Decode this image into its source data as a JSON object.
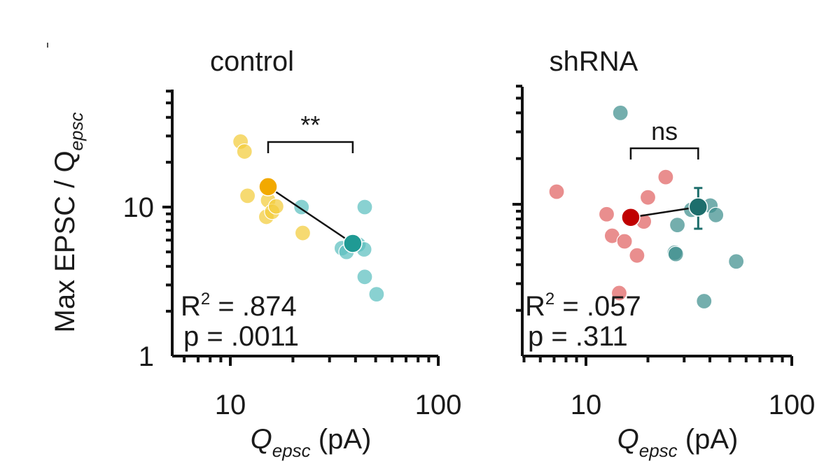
{
  "chart_data": [
    {
      "type": "scatter",
      "title": "control",
      "xscale": "log",
      "yscale": "log",
      "xlim": [
        5,
        100
      ],
      "ylim": [
        1,
        60
      ],
      "xticks": [
        10,
        100
      ],
      "xtick_labels": [
        "10",
        "100"
      ],
      "yticks": [
        1,
        10
      ],
      "ytick_labels": [
        "1",
        "10"
      ],
      "xlabel": {
        "main": "Q",
        "sub": "epsc",
        "rest": " (pA)"
      },
      "ylabel": {
        "main": "Max EPSC / Q",
        "sub": "epsc"
      },
      "series": [
        {
          "name": "control Q1",
          "color": "#f2cc3a",
          "role": "cells",
          "points": [
            [
              11.2,
              27.5
            ],
            [
              11.7,
              23.6
            ],
            [
              12.1,
              11.9
            ],
            [
              14.9,
              8.6
            ],
            [
              15.2,
              11.1
            ],
            [
              15.9,
              9.3
            ],
            [
              16.6,
              10.1
            ],
            [
              22.3,
              6.7
            ]
          ]
        },
        {
          "name": "control Q2",
          "color": "#5bbfbf",
          "role": "cells",
          "points": [
            [
              22.0,
              10.0
            ],
            [
              34.4,
              5.3
            ],
            [
              36.2,
              5.0
            ],
            [
              41.3,
              5.6
            ],
            [
              44.3,
              10.0
            ],
            [
              44.0,
              5.2
            ],
            [
              44.3,
              3.4
            ],
            [
              50.5,
              2.6
            ]
          ]
        },
        {
          "name": "control Q1 mean",
          "color": "#f2a900",
          "role": "mean",
          "points": [
            [
              15.2,
              13.7
            ]
          ],
          "yerr": [
            [
              12.2,
              15.3
            ]
          ]
        },
        {
          "name": "control Q2 mean",
          "color": "#1f9a94",
          "role": "mean",
          "points": [
            [
              38.8,
              5.7
            ]
          ],
          "yerr": [
            [
              5.2,
              6.3
            ]
          ]
        }
      ],
      "fit_line": [
        [
          15.2,
          13.7
        ],
        [
          38.8,
          5.7
        ]
      ],
      "significance": {
        "label": "**",
        "x1": 15.2,
        "x2": 38.8
      },
      "annotations": [
        {
          "label": "R",
          "sup": "2",
          "rest": " = .874"
        },
        {
          "label": "p = .0011"
        }
      ]
    },
    {
      "type": "scatter",
      "title": "shRNA",
      "xscale": "log",
      "yscale": "log",
      "xlim": [
        5,
        100
      ],
      "ylim": [
        1,
        60
      ],
      "xticks": [
        10,
        100
      ],
      "xtick_labels": [
        "10",
        "100"
      ],
      "yticks": [
        1,
        10
      ],
      "ytick_labels": [
        "",
        ""
      ],
      "xlabel": {
        "main": "Q",
        "sub": "epsc",
        "rest": " (pA)"
      },
      "ylabel": null,
      "series": [
        {
          "name": "shRNA Q1",
          "color": "#e06262",
          "role": "cells",
          "points": [
            [
              7.2,
              12.1
            ],
            [
              12.6,
              8.6
            ],
            [
              13.4,
              6.2
            ],
            [
              14.5,
              2.6
            ],
            [
              15.4,
              5.7
            ],
            [
              17.7,
              4.6
            ],
            [
              19.1,
              7.7
            ],
            [
              20.0,
              11.1
            ],
            [
              24.4,
              15.1
            ]
          ]
        },
        {
          "name": "shRNA Q2",
          "color": "#3e8f8d",
          "role": "cells",
          "points": [
            [
              14.7,
              40.0
            ],
            [
              27.0,
              4.8
            ],
            [
              27.3,
              4.7
            ],
            [
              27.8,
              7.3
            ],
            [
              32.5,
              9.2
            ],
            [
              37.5,
              2.3
            ],
            [
              40.2,
              9.8
            ],
            [
              42.8,
              8.5
            ],
            [
              53.7,
              4.2
            ]
          ]
        },
        {
          "name": "shRNA Q1 mean",
          "color": "#c00000",
          "role": "mean",
          "points": [
            [
              16.5,
              8.2
            ]
          ],
          "yerr": [
            [
              7.7,
              8.6
            ]
          ]
        },
        {
          "name": "shRNA Q2 mean",
          "color": "#1d6e6c",
          "role": "mean",
          "points": [
            [
              35.1,
              9.6
            ]
          ],
          "yerr": [
            [
              6.9,
              12.8
            ]
          ]
        }
      ],
      "fit_line": [
        [
          16.5,
          8.2
        ],
        [
          35.1,
          9.6
        ]
      ],
      "significance": {
        "label": "ns",
        "x1": 16.5,
        "x2": 35.1
      },
      "annotations": [
        {
          "label": "R",
          "sup": "2",
          "rest": " = .057"
        },
        {
          "label": "p = .311"
        }
      ]
    }
  ]
}
